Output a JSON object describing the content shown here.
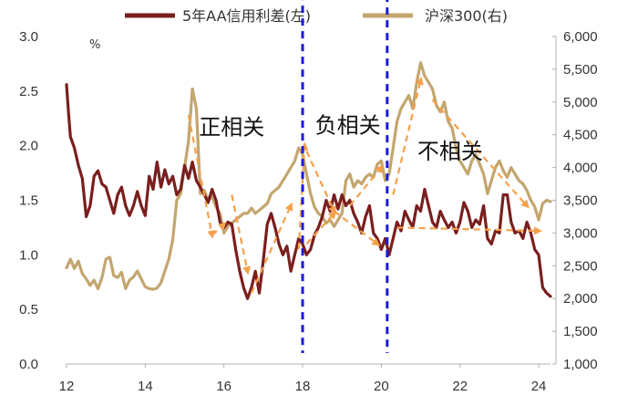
{
  "chart_data": {
    "type": "line",
    "title": "",
    "legend": {
      "placement": "top",
      "entries": [
        {
          "label": "5年AA信用利差(左)",
          "color": "#7a1e1e"
        },
        {
          "label": "沪深300(右)",
          "color": "#c3a66e"
        }
      ]
    },
    "left_axis": {
      "unit": "%",
      "range": [
        0,
        3.0
      ],
      "ticks": [
        "0.0",
        "0.5",
        "1.0",
        "1.5",
        "2.0",
        "2.5",
        "3.0"
      ]
    },
    "right_axis": {
      "range": [
        1000,
        6000
      ],
      "ticks": [
        "1,000",
        "1,500",
        "2,000",
        "2,500",
        "3,000",
        "3,500",
        "4,000",
        "4,500",
        "5,000",
        "5,500",
        "6,000"
      ]
    },
    "x_axis": {
      "range": [
        12,
        24.3
      ],
      "ticks": [
        "12",
        "14",
        "16",
        "18",
        "20",
        "22",
        "24"
      ]
    },
    "series": [
      {
        "name": "5年AA信用利差(左)",
        "axis": "left",
        "color": "#7a1e1e",
        "points": [
          [
            12.0,
            2.56
          ],
          [
            12.05,
            2.3
          ],
          [
            12.1,
            2.08
          ],
          [
            12.2,
            1.98
          ],
          [
            12.3,
            1.82
          ],
          [
            12.4,
            1.7
          ],
          [
            12.5,
            1.35
          ],
          [
            12.6,
            1.45
          ],
          [
            12.7,
            1.72
          ],
          [
            12.8,
            1.77
          ],
          [
            12.9,
            1.65
          ],
          [
            13.0,
            1.62
          ],
          [
            13.1,
            1.5
          ],
          [
            13.2,
            1.38
          ],
          [
            13.3,
            1.55
          ],
          [
            13.4,
            1.62
          ],
          [
            13.5,
            1.45
          ],
          [
            13.6,
            1.36
          ],
          [
            13.7,
            1.45
          ],
          [
            13.8,
            1.58
          ],
          [
            13.9,
            1.45
          ],
          [
            14.0,
            1.36
          ],
          [
            14.1,
            1.72
          ],
          [
            14.2,
            1.6
          ],
          [
            14.3,
            1.85
          ],
          [
            14.4,
            1.62
          ],
          [
            14.5,
            1.78
          ],
          [
            14.6,
            1.65
          ],
          [
            14.7,
            1.72
          ],
          [
            14.8,
            1.55
          ],
          [
            14.9,
            1.6
          ],
          [
            15.0,
            1.82
          ],
          [
            15.1,
            1.7
          ],
          [
            15.2,
            1.85
          ],
          [
            15.3,
            1.68
          ],
          [
            15.4,
            1.62
          ],
          [
            15.5,
            1.55
          ],
          [
            15.6,
            1.48
          ],
          [
            15.7,
            1.6
          ],
          [
            15.8,
            1.5
          ],
          [
            15.9,
            1.3
          ],
          [
            16.0,
            1.25
          ],
          [
            16.1,
            1.3
          ],
          [
            16.2,
            1.28
          ],
          [
            16.3,
            1.05
          ],
          [
            16.4,
            0.85
          ],
          [
            16.5,
            0.7
          ],
          [
            16.6,
            0.6
          ],
          [
            16.7,
            0.7
          ],
          [
            16.8,
            0.85
          ],
          [
            16.9,
            0.65
          ],
          [
            17.0,
            0.95
          ],
          [
            17.1,
            1.28
          ],
          [
            17.2,
            1.38
          ],
          [
            17.3,
            1.25
          ],
          [
            17.4,
            1.1
          ],
          [
            17.5,
            1.0
          ],
          [
            17.6,
            1.08
          ],
          [
            17.7,
            0.85
          ],
          [
            17.8,
            1.0
          ],
          [
            17.9,
            1.15
          ],
          [
            18.0,
            1.1
          ],
          [
            18.1,
            1.0
          ],
          [
            18.2,
            1.05
          ],
          [
            18.3,
            1.18
          ],
          [
            18.4,
            1.25
          ],
          [
            18.5,
            1.35
          ],
          [
            18.6,
            1.5
          ],
          [
            18.7,
            1.4
          ],
          [
            18.8,
            1.55
          ],
          [
            18.9,
            1.42
          ],
          [
            19.0,
            1.55
          ],
          [
            19.1,
            1.45
          ],
          [
            19.2,
            1.5
          ],
          [
            19.3,
            1.38
          ],
          [
            19.4,
            1.3
          ],
          [
            19.5,
            1.2
          ],
          [
            19.6,
            1.35
          ],
          [
            19.7,
            1.45
          ],
          [
            19.8,
            1.2
          ],
          [
            19.9,
            1.15
          ],
          [
            20.0,
            1.05
          ],
          [
            20.1,
            1.15
          ],
          [
            20.2,
            1.0
          ],
          [
            20.3,
            1.15
          ],
          [
            20.4,
            1.3
          ],
          [
            20.5,
            1.22
          ],
          [
            20.6,
            1.4
          ],
          [
            20.7,
            1.32
          ],
          [
            20.8,
            1.25
          ],
          [
            20.9,
            1.45
          ],
          [
            21.0,
            1.4
          ],
          [
            21.1,
            1.6
          ],
          [
            21.2,
            1.45
          ],
          [
            21.3,
            1.3
          ],
          [
            21.4,
            1.25
          ],
          [
            21.5,
            1.4
          ],
          [
            21.6,
            1.32
          ],
          [
            21.7,
            1.25
          ],
          [
            21.8,
            1.3
          ],
          [
            21.9,
            1.2
          ],
          [
            22.0,
            1.3
          ],
          [
            22.1,
            1.48
          ],
          [
            22.2,
            1.4
          ],
          [
            22.3,
            1.25
          ],
          [
            22.4,
            1.32
          ],
          [
            22.5,
            1.28
          ],
          [
            22.6,
            1.45
          ],
          [
            22.7,
            1.15
          ],
          [
            22.8,
            1.1
          ],
          [
            22.9,
            1.22
          ],
          [
            23.0,
            1.2
          ],
          [
            23.1,
            1.55
          ],
          [
            23.2,
            1.55
          ],
          [
            23.3,
            1.3
          ],
          [
            23.4,
            1.2
          ],
          [
            23.5,
            1.22
          ],
          [
            23.6,
            1.15
          ],
          [
            23.7,
            1.3
          ],
          [
            23.8,
            1.2
          ],
          [
            23.9,
            1.05
          ],
          [
            24.0,
            1.0
          ],
          [
            24.05,
            0.85
          ],
          [
            24.1,
            0.7
          ],
          [
            24.2,
            0.65
          ],
          [
            24.3,
            0.62
          ]
        ]
      },
      {
        "name": "沪深300(右)",
        "axis": "right",
        "color": "#c3a66e",
        "points": [
          [
            12.0,
            2470
          ],
          [
            12.1,
            2600
          ],
          [
            12.2,
            2460
          ],
          [
            12.3,
            2570
          ],
          [
            12.4,
            2380
          ],
          [
            12.5,
            2300
          ],
          [
            12.6,
            2200
          ],
          [
            12.7,
            2280
          ],
          [
            12.8,
            2150
          ],
          [
            12.9,
            2320
          ],
          [
            13.0,
            2600
          ],
          [
            13.1,
            2630
          ],
          [
            13.2,
            2350
          ],
          [
            13.3,
            2320
          ],
          [
            13.4,
            2400
          ],
          [
            13.5,
            2150
          ],
          [
            13.6,
            2280
          ],
          [
            13.7,
            2330
          ],
          [
            13.8,
            2420
          ],
          [
            13.9,
            2300
          ],
          [
            14.0,
            2180
          ],
          [
            14.1,
            2150
          ],
          [
            14.2,
            2140
          ],
          [
            14.3,
            2160
          ],
          [
            14.4,
            2240
          ],
          [
            14.5,
            2420
          ],
          [
            14.6,
            2600
          ],
          [
            14.7,
            2900
          ],
          [
            14.8,
            3500
          ],
          [
            14.9,
            3600
          ],
          [
            15.0,
            4000
          ],
          [
            15.1,
            4400
          ],
          [
            15.2,
            5200
          ],
          [
            15.3,
            4900
          ],
          [
            15.4,
            3600
          ],
          [
            15.5,
            3650
          ],
          [
            15.6,
            3500
          ],
          [
            15.7,
            3550
          ],
          [
            15.8,
            3400
          ],
          [
            15.9,
            3300
          ],
          [
            16.0,
            3000
          ],
          [
            16.1,
            3100
          ],
          [
            16.2,
            3150
          ],
          [
            16.3,
            3200
          ],
          [
            16.4,
            3250
          ],
          [
            16.5,
            3300
          ],
          [
            16.6,
            3300
          ],
          [
            16.7,
            3380
          ],
          [
            16.8,
            3300
          ],
          [
            16.9,
            3350
          ],
          [
            17.0,
            3400
          ],
          [
            17.1,
            3450
          ],
          [
            17.2,
            3600
          ],
          [
            17.3,
            3650
          ],
          [
            17.4,
            3700
          ],
          [
            17.5,
            3800
          ],
          [
            17.6,
            3900
          ],
          [
            17.7,
            4000
          ],
          [
            17.8,
            4100
          ],
          [
            17.9,
            4300
          ],
          [
            18.0,
            4200
          ],
          [
            18.1,
            3900
          ],
          [
            18.2,
            3600
          ],
          [
            18.3,
            3400
          ],
          [
            18.4,
            3300
          ],
          [
            18.5,
            3250
          ],
          [
            18.6,
            3150
          ],
          [
            18.7,
            3200
          ],
          [
            18.8,
            3100
          ],
          [
            18.9,
            3200
          ],
          [
            19.0,
            3300
          ],
          [
            19.1,
            3800
          ],
          [
            19.2,
            3900
          ],
          [
            19.3,
            3700
          ],
          [
            19.4,
            3800
          ],
          [
            19.5,
            3750
          ],
          [
            19.6,
            3850
          ],
          [
            19.7,
            3900
          ],
          [
            19.8,
            3850
          ],
          [
            19.9,
            4050
          ],
          [
            20.0,
            4100
          ],
          [
            20.1,
            3800
          ],
          [
            20.2,
            3900
          ],
          [
            20.3,
            4300
          ],
          [
            20.4,
            4700
          ],
          [
            20.5,
            4900
          ],
          [
            20.6,
            5000
          ],
          [
            20.7,
            5100
          ],
          [
            20.8,
            4900
          ],
          [
            20.9,
            5300
          ],
          [
            21.0,
            5600
          ],
          [
            21.1,
            5400
          ],
          [
            21.2,
            5300
          ],
          [
            21.3,
            5200
          ],
          [
            21.4,
            4950
          ],
          [
            21.5,
            4850
          ],
          [
            21.6,
            5000
          ],
          [
            21.7,
            4700
          ],
          [
            21.8,
            4600
          ],
          [
            21.9,
            4300
          ],
          [
            22.0,
            4100
          ],
          [
            22.1,
            4000
          ],
          [
            22.2,
            3900
          ],
          [
            22.3,
            4100
          ],
          [
            22.4,
            4200
          ],
          [
            22.5,
            4050
          ],
          [
            22.6,
            3900
          ],
          [
            22.7,
            3600
          ],
          [
            22.8,
            3800
          ],
          [
            22.9,
            4000
          ],
          [
            23.0,
            4100
          ],
          [
            23.1,
            3950
          ],
          [
            23.2,
            3850
          ],
          [
            23.3,
            4000
          ],
          [
            23.4,
            3900
          ],
          [
            23.5,
            3800
          ],
          [
            23.6,
            3750
          ],
          [
            23.7,
            3650
          ],
          [
            23.8,
            3500
          ],
          [
            23.9,
            3400
          ],
          [
            24.0,
            3200
          ],
          [
            24.1,
            3450
          ],
          [
            24.2,
            3500
          ],
          [
            24.3,
            3480
          ]
        ]
      }
    ],
    "vertical_lines": [
      {
        "x": 18.0,
        "y_top": 3.4,
        "y_bottom": 0.1,
        "color": "#1a1adb"
      },
      {
        "x": 20.15,
        "y_top": 3.5,
        "y_bottom": 0.1,
        "color": "#1a1adb"
      }
    ],
    "annotations": [
      {
        "text": "正相关",
        "x": 16.2,
        "y": 2.1
      },
      {
        "text": "负相关",
        "x": 19.15,
        "y": 2.12
      },
      {
        "text": "不相关",
        "x": 21.75,
        "y": 1.88
      }
    ],
    "trend_arrows": [
      {
        "axis": "left",
        "from": [
          15.1,
          2.28
        ],
        "to": [
          15.7,
          1.18
        ],
        "color": "#f5a04a"
      },
      {
        "axis": "left",
        "from": [
          15.7,
          1.18
        ],
        "to": [
          16.0,
          1.28
        ],
        "color": "#f5a04a"
      },
      {
        "axis": "left",
        "from": [
          16.2,
          1.55
        ],
        "to": [
          16.6,
          0.85
        ],
        "color": "#f5a04a"
      },
      {
        "axis": "left",
        "from": [
          16.7,
          0.65
        ],
        "to": [
          17.7,
          1.45
        ],
        "color": "#f5a04a"
      },
      {
        "axis": "left",
        "from": [
          17.9,
          1.05
        ],
        "to": [
          18.05,
          2.0
        ],
        "color": "#f5a04a"
      },
      {
        "axis": "left",
        "from": [
          18.1,
          1.95
        ],
        "to": [
          18.8,
          1.4
        ],
        "color": "#f5a04a"
      },
      {
        "axis": "left",
        "from": [
          18.1,
          1.1
        ],
        "to": [
          18.8,
          1.38
        ],
        "color": "#f5a04a"
      },
      {
        "axis": "left",
        "from": [
          18.8,
          1.4
        ],
        "to": [
          19.9,
          1.1
        ],
        "color": "#f5a04a"
      },
      {
        "axis": "left",
        "from": [
          19.2,
          1.45
        ],
        "to": [
          20.0,
          1.8
        ],
        "color": "#f5a04a"
      },
      {
        "axis": "left",
        "from": [
          20.3,
          1.55
        ],
        "to": [
          21.0,
          2.6
        ],
        "color": "#f5a04a"
      },
      {
        "axis": "left",
        "from": [
          21.3,
          2.42
        ],
        "to": [
          23.7,
          1.45
        ],
        "color": "#f5a04a"
      },
      {
        "axis": "left",
        "from": [
          20.4,
          1.25
        ],
        "to": [
          24.0,
          1.22
        ],
        "color": "#f5a04a"
      }
    ]
  }
}
